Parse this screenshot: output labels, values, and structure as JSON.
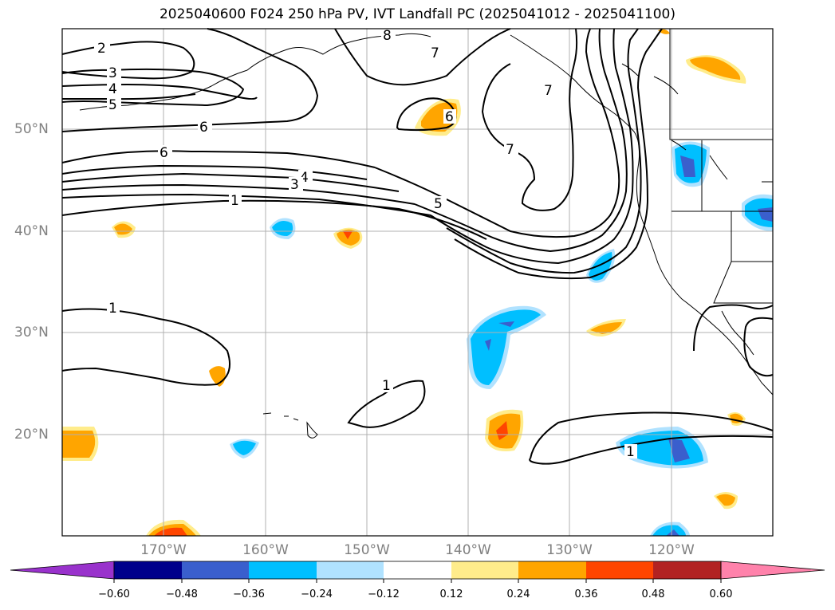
{
  "title": "2025040600 F024 250 hPa PV, IVT Landfall PC (2025041012 - 2025041100)",
  "map": {
    "lat_labels": [
      "50°N",
      "40°N",
      "30°N",
      "20°N"
    ],
    "lon_labels": [
      "170°W",
      "160°W",
      "150°W",
      "140°W",
      "130°W",
      "120°W"
    ],
    "extent": {
      "lon": [
        -180,
        -110
      ],
      "lat": [
        10,
        60
      ]
    },
    "grid": true,
    "contour_variable": "250 hPa PV",
    "shading_variable": "IVT Landfall PC",
    "contour_labels": [
      "1",
      "1",
      "1",
      "1",
      "2",
      "3",
      "3",
      "4",
      "4",
      "5",
      "5",
      "6",
      "6",
      "6",
      "7",
      "7",
      "7",
      "8"
    ]
  },
  "colorbar": {
    "ticks": [
      "−0.60",
      "−0.48",
      "−0.36",
      "−0.24",
      "−0.12",
      "0.12",
      "0.24",
      "0.36",
      "0.48",
      "0.60"
    ],
    "colors": [
      "#9932cc",
      "#00008b",
      "#3a5fcd",
      "#00bfff",
      "#b0e2ff",
      "#ffffff",
      "#ffec8b",
      "#ffa500",
      "#ff4500",
      "#b22222",
      "#ff82ab"
    ],
    "extend": "both"
  }
}
